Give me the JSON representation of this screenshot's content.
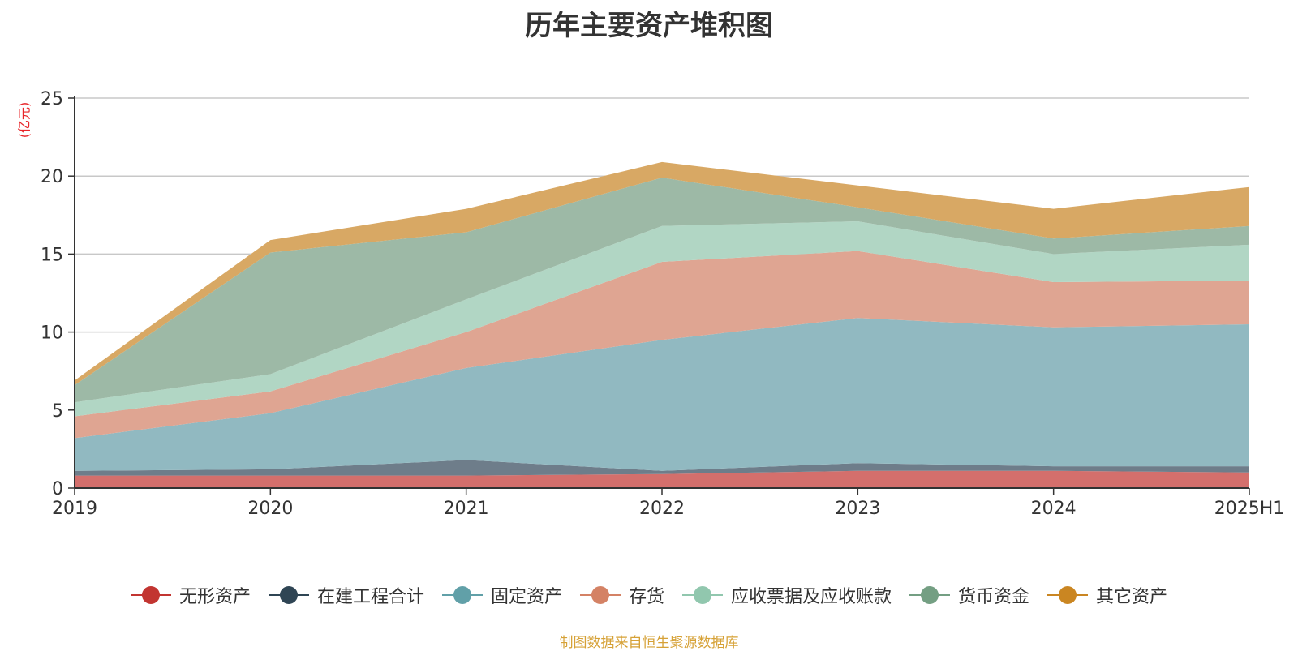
{
  "chart_data": {
    "type": "area",
    "stacked": true,
    "title": "历年主要资产堆积图",
    "y_unit": "(亿元)",
    "source": "制图数据来自恒生聚源数据库",
    "categories": [
      "2019",
      "2020",
      "2021",
      "2022",
      "2023",
      "2024",
      "2025H1"
    ],
    "ylim": [
      0,
      25
    ],
    "yticks": [
      0,
      5,
      10,
      15,
      20,
      25
    ],
    "grid": true,
    "legend_position": "bottom",
    "series": [
      {
        "name": "无形资产",
        "color": "#c23531",
        "fill": "#d46f6c",
        "values": [
          0.8,
          0.8,
          0.8,
          0.9,
          1.1,
          1.1,
          1.0
        ]
      },
      {
        "name": "在建工程合计",
        "color": "#2f4554",
        "fill": "#6e7d8a",
        "values": [
          0.3,
          0.4,
          1.0,
          0.2,
          0.5,
          0.3,
          0.4
        ]
      },
      {
        "name": "固定资产",
        "color": "#61a0a8",
        "fill": "#91b9c1",
        "values": [
          2.1,
          3.6,
          5.9,
          8.4,
          9.3,
          8.9,
          9.1
        ]
      },
      {
        "name": "存货",
        "color": "#d48265",
        "fill": "#dfa592",
        "values": [
          1.4,
          1.4,
          2.3,
          5.0,
          4.3,
          2.9,
          2.8
        ]
      },
      {
        "name": "应收票据及应收账款",
        "color": "#91c7ae",
        "fill": "#b1d6c4",
        "values": [
          0.9,
          1.1,
          2.1,
          2.3,
          1.9,
          1.8,
          2.3
        ]
      },
      {
        "name": "货币资金",
        "color": "#749f83",
        "fill": "#9db9a6",
        "values": [
          1.1,
          7.8,
          4.3,
          3.1,
          0.9,
          1.0,
          1.2
        ]
      },
      {
        "name": "其它资产",
        "color": "#ca8622",
        "fill": "#d8a864",
        "values": [
          0.3,
          0.8,
          1.5,
          1.0,
          1.4,
          1.9,
          2.5
        ]
      }
    ]
  }
}
